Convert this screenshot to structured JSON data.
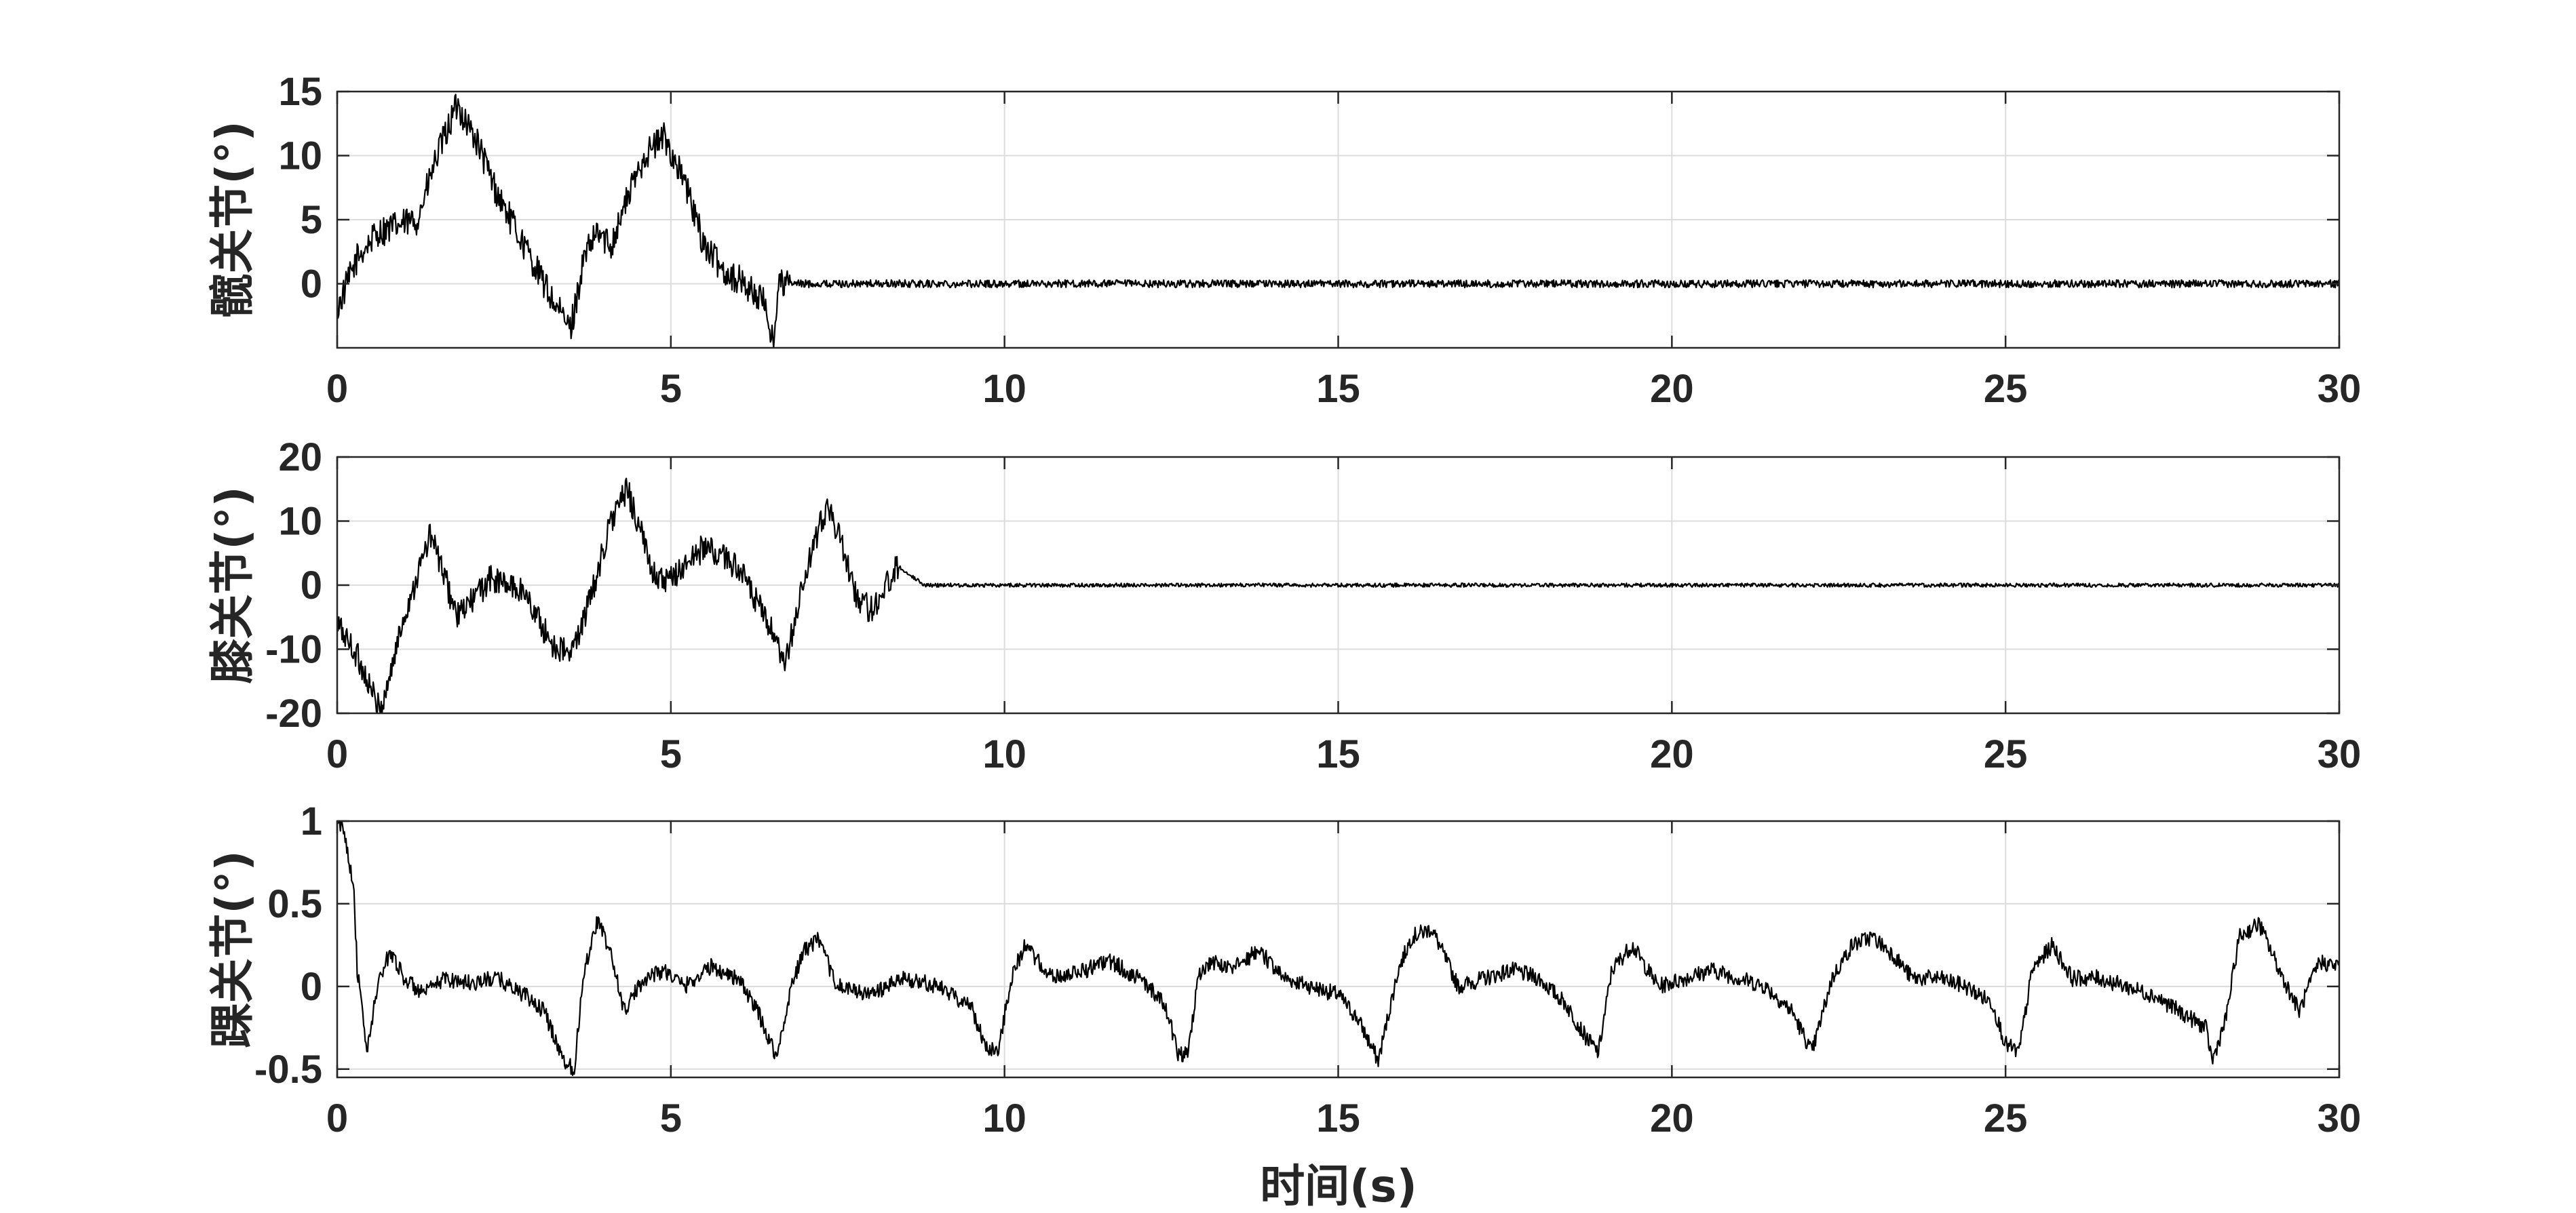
{
  "chart_data": [
    {
      "type": "line",
      "ylabel": "髋关节(°)",
      "xlabel": "",
      "xlim": [
        0,
        30
      ],
      "ylim": [
        -5,
        15
      ],
      "xticks": [
        "0",
        "5",
        "10",
        "15",
        "20",
        "25",
        "30"
      ],
      "yticks": [
        "0",
        "5",
        "10",
        "15"
      ],
      "grid": true,
      "series": [
        {
          "x": [
            0,
            0.3,
            0.6,
            0.9,
            1.2,
            1.5,
            1.8,
            2.1,
            2.4,
            2.7,
            3.0,
            3.3,
            3.5,
            3.7,
            3.9,
            4.1,
            4.3,
            4.6,
            4.9,
            5.2,
            5.5,
            5.8,
            6.1,
            6.4,
            6.55,
            6.6,
            6.8,
            7.5,
            10,
            15,
            20,
            25,
            30
          ],
          "y": [
            -2,
            2,
            4,
            4.5,
            5,
            10,
            14,
            11,
            7,
            4,
            1,
            -2,
            -3.5,
            2,
            4,
            3,
            6,
            10,
            11.5,
            8,
            3,
            1,
            0,
            -1.5,
            -4.8,
            0,
            0,
            0,
            0,
            0,
            0,
            0,
            0
          ],
          "noise": [
            1.2,
            0.3
          ]
        }
      ]
    },
    {
      "type": "line",
      "ylabel": "膝关节(°)",
      "xlabel": "",
      "xlim": [
        0,
        30
      ],
      "ylim": [
        -20,
        20
      ],
      "xticks": [
        "0",
        "5",
        "10",
        "15",
        "20",
        "25",
        "30"
      ],
      "yticks": [
        "-20",
        "-10",
        "0",
        "10",
        "20"
      ],
      "grid": true,
      "series": [
        {
          "x": [
            0,
            0.3,
            0.65,
            1.0,
            1.4,
            1.8,
            2.3,
            2.8,
            3.2,
            3.5,
            3.8,
            4.1,
            4.35,
            4.7,
            4.9,
            5.5,
            6.0,
            6.5,
            6.7,
            7.0,
            7.35,
            7.8,
            8.0,
            8.4,
            8.8,
            10,
            15,
            20,
            25,
            30
          ],
          "y": [
            -6,
            -11,
            -20,
            -5,
            8,
            -5,
            1,
            -1,
            -9,
            -11,
            -2,
            10,
            15,
            3,
            0,
            6,
            3,
            -7,
            -13,
            1,
            13,
            -2,
            -4,
            3,
            0,
            0,
            0,
            0,
            0,
            0
          ],
          "noise": [
            2.2,
            0.3
          ]
        }
      ]
    },
    {
      "type": "line",
      "ylabel": "踝关节(°)",
      "xlabel": "时间(s)",
      "xlim": [
        0,
        30
      ],
      "ylim": [
        -0.55,
        1
      ],
      "xticks": [
        "0",
        "5",
        "10",
        "15",
        "20",
        "25",
        "30"
      ],
      "yticks": [
        "-0.5",
        "0",
        "0.5",
        "1"
      ],
      "grid": true,
      "series": [
        {
          "x": [
            0,
            0.1,
            0.25,
            0.3,
            0.45,
            0.6,
            0.8,
            1.0,
            1.3,
            1.6,
            2.0,
            2.4,
            2.8,
            3.1,
            3.4,
            3.55,
            3.7,
            3.9,
            4.1,
            4.3,
            4.6,
            4.9,
            5.2,
            5.6,
            6.0,
            6.3,
            6.5,
            6.6,
            6.8,
            7.0,
            7.2,
            7.5,
            8.0,
            8.5,
            9.0,
            9.5,
            9.7,
            9.9,
            10.1,
            10.3,
            10.7,
            11.2,
            11.6,
            12.0,
            12.4,
            12.6,
            12.75,
            12.9,
            13.1,
            13.4,
            13.8,
            14.2,
            14.6,
            15.0,
            15.3,
            15.6,
            15.9,
            16.1,
            16.4,
            16.8,
            17.2,
            17.6,
            18.0,
            18.4,
            18.7,
            18.9,
            19.1,
            19.4,
            19.8,
            20.2,
            20.6,
            21.0,
            21.4,
            21.8,
            22.1,
            22.4,
            22.7,
            23.0,
            23.3,
            23.6,
            24.0,
            24.4,
            24.8,
            25.0,
            25.2,
            25.4,
            25.7,
            26.0,
            26.4,
            26.8,
            27.2,
            27.6,
            28.0,
            28.1,
            28.3,
            28.5,
            28.8,
            29.1,
            29.4,
            29.7,
            30.0
          ],
          "y": [
            1.0,
            0.95,
            0.6,
            0.1,
            -0.4,
            0.0,
            0.22,
            0.05,
            -0.05,
            0.05,
            0.02,
            0.05,
            -0.05,
            -0.15,
            -0.45,
            -0.5,
            0.1,
            0.4,
            0.2,
            -0.15,
            0.05,
            0.1,
            0.0,
            0.12,
            0.05,
            -0.15,
            -0.35,
            -0.42,
            0.0,
            0.22,
            0.28,
            0.0,
            -0.05,
            0.05,
            0.0,
            -0.12,
            -0.35,
            -0.4,
            0.05,
            0.25,
            0.05,
            0.1,
            0.15,
            0.05,
            -0.1,
            -0.4,
            -0.42,
            0.05,
            0.15,
            0.1,
            0.22,
            0.05,
            0.0,
            -0.05,
            -0.2,
            -0.45,
            0.1,
            0.3,
            0.35,
            0.0,
            0.05,
            0.1,
            0.05,
            -0.1,
            -0.3,
            -0.4,
            0.1,
            0.25,
            0.0,
            0.05,
            0.1,
            0.05,
            0.0,
            -0.15,
            -0.4,
            0.05,
            0.25,
            0.3,
            0.2,
            0.05,
            0.05,
            0.0,
            -0.1,
            -0.35,
            -0.4,
            0.1,
            0.25,
            0.05,
            0.05,
            0.0,
            -0.05,
            -0.15,
            -0.25,
            -0.45,
            -0.2,
            0.3,
            0.38,
            0.1,
            -0.15,
            0.15,
            0.12
          ],
          "noise": [
            0.05,
            0.03
          ]
        }
      ]
    }
  ]
}
